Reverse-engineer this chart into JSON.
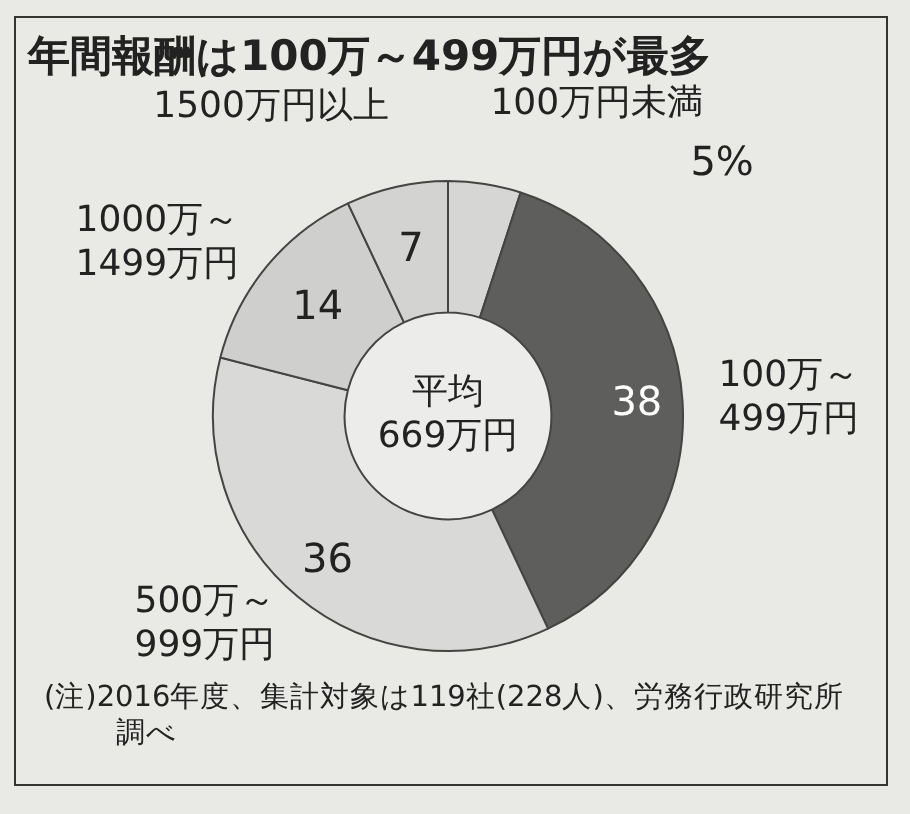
{
  "chart_data": {
    "type": "donut",
    "title": "年間報酬は100万～499万円が最多",
    "categories": [
      "100万円未満",
      "100万～499万円",
      "500万～999万円",
      "1000万～1499万円",
      "1500万円以上"
    ],
    "values": [
      5,
      38,
      36,
      14,
      7
    ],
    "colors": [
      "#d6d6d4",
      "#5e5e5c",
      "#d9d9d7",
      "#cfcfcd",
      "#d3d3d1"
    ],
    "value_labels": [
      "5%",
      "38",
      "36",
      "14",
      "7"
    ],
    "annotations": [
      "平均 669万円",
      "(注)2016年度、集計対象は119社(228人)、労務行政研究所調べ"
    ]
  }
}
